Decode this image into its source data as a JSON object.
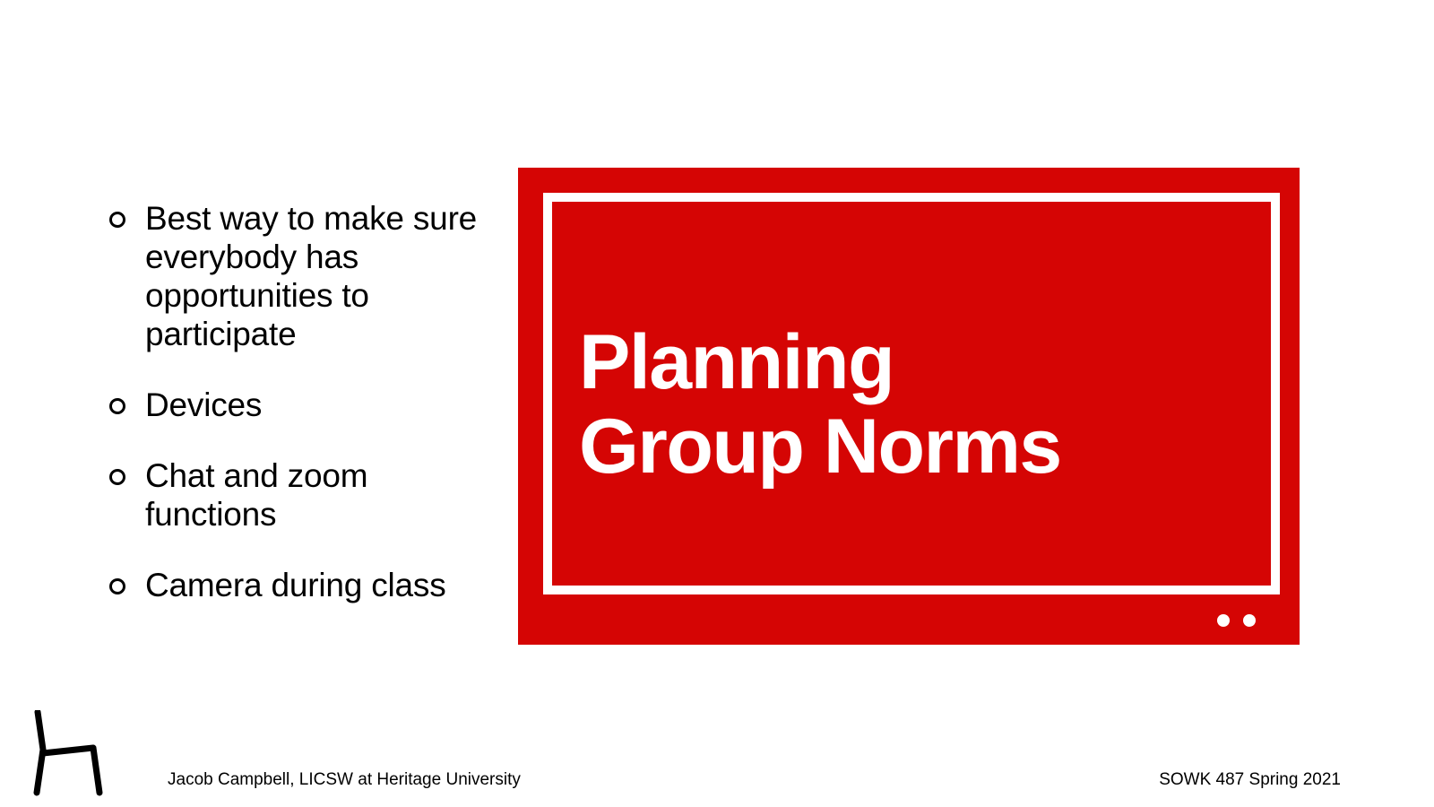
{
  "slide": {
    "bullets": [
      "Best way to make sure everybody has opportunities to participate",
      "Devices",
      "Chat and zoom functions",
      "Camera during class"
    ],
    "title_line1": "Planning",
    "title_line2": "Group Norms"
  },
  "footer": {
    "left": "Jacob Campbell, LICSW at Heritage University",
    "right": "SOWK 487 Spring 2021"
  },
  "icons": {
    "bullet": "hollow-circle-icon",
    "logo": "chair-icon",
    "indicator": "dot-icon"
  },
  "colors": {
    "accent": "#d50504",
    "text": "#000000",
    "background": "#ffffff"
  }
}
